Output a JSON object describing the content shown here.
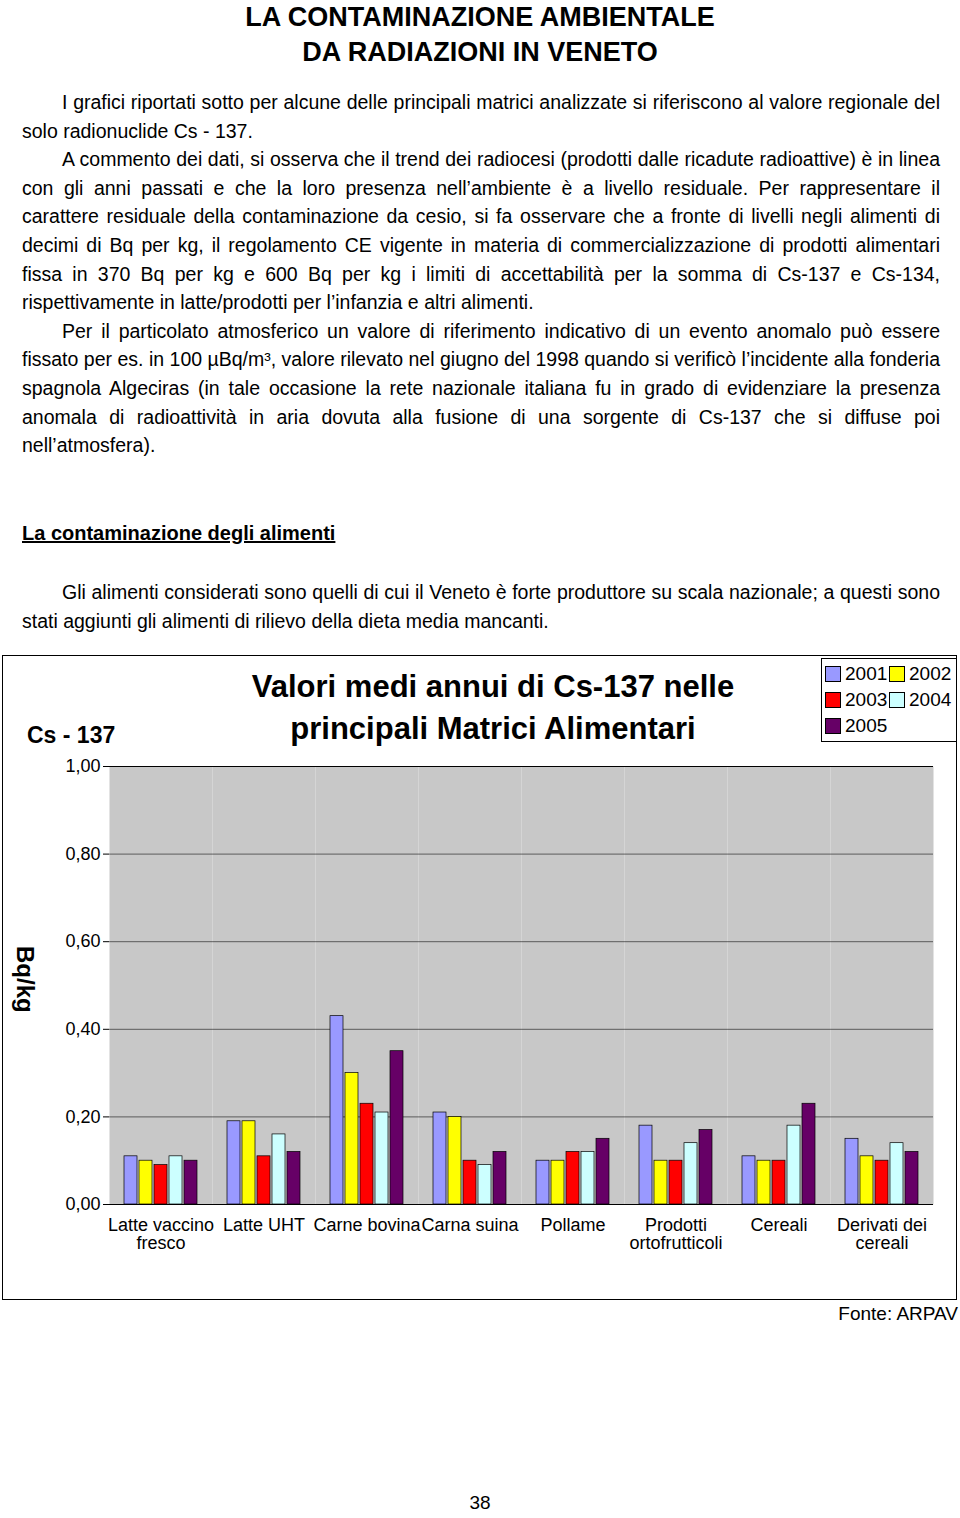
{
  "header": {
    "title": [
      "LA CONTAMINAZIONE AMBIENTALE",
      "DA RADIAZIONI IN VENETO"
    ]
  },
  "intro": {
    "paragraphs": [
      "I grafici riportati sotto per alcune delle principali matrici analizzate si riferiscono al valore regionale del solo radionuclide Cs - 137.",
      "A commento dei dati, si osserva che il trend dei radiocesi (prodotti dalle ricadute radioattive) è in linea con gli anni passati e che la loro presenza nell’ambiente è a livello residuale. Per rappresentare il carattere residuale della contaminazione da cesio, si fa osservare che a fronte di livelli negli alimenti di decimi di Bq per kg, il regolamento CE vigente in materia di commercializzazione di prodotti alimentari fissa in 370 Bq per kg e 600 Bq per kg i limiti di accettabilità per la somma di Cs-137 e Cs-134, rispettivamente in latte/prodotti per l’infanzia e altri alimenti.",
      "Per il particolato atmosferico un valore di riferimento indicativo di un evento anomalo può essere fissato per es. in 100 µBq/m³, valore rilevato nel giugno del 1998 quando si verificò l’incidente alla fonderia spagnola Algeciras (in tale occasione la rete nazionale italiana fu in grado di evidenziare la presenza anomala di radioattività in aria dovuta alla fusione di una sorgente di Cs-137 che si diffuse poi nell’atmosfera)."
    ]
  },
  "section": {
    "heading": "La contaminazione degli alimenti",
    "paragraphs": [
      "Gli alimenti considerati sono quelli di cui il Veneto è forte produttore su scala nazionale; a questi sono stati aggiunti gli alimenti di rilievo della dieta media mancanti."
    ]
  },
  "chart_data": {
    "type": "bar",
    "title": "Valori medi annui di Cs-137 nelle principali Matrici Alimentari",
    "annotation": "Cs - 137",
    "y_label": "Bq/kg",
    "categories": [
      "Latte vaccino fresco",
      "Latte UHT",
      "Carne bovina",
      "Carna suina",
      "Pollame",
      "Prodotti ortofrutticoli",
      "Cereali",
      "Derivati dei cereali"
    ],
    "series": [
      {
        "name": "2001",
        "color": "#9999ff",
        "values": [
          0.11,
          0.19,
          0.43,
          0.21,
          0.1,
          0.18,
          0.11,
          0.15
        ]
      },
      {
        "name": "2002",
        "color": "#ffff00",
        "values": [
          0.1,
          0.19,
          0.3,
          0.2,
          0.1,
          0.1,
          0.1,
          0.11
        ]
      },
      {
        "name": "2003",
        "color": "#ff0000",
        "values": [
          0.09,
          0.11,
          0.23,
          0.1,
          0.12,
          0.1,
          0.1,
          0.1
        ]
      },
      {
        "name": "2004",
        "color": "#ccffff",
        "values": [
          0.11,
          0.16,
          0.21,
          0.09,
          0.12,
          0.14,
          0.18,
          0.14
        ]
      },
      {
        "name": "2005",
        "color": "#660066",
        "values": [
          0.1,
          0.12,
          0.35,
          0.12,
          0.15,
          0.17,
          0.23,
          0.12
        ]
      }
    ],
    "ylim": [
      0,
      1
    ],
    "yticks": [
      {
        "value": 0,
        "label": "0,00"
      },
      {
        "value": 0.2,
        "label": "0,20"
      },
      {
        "value": 0.4,
        "label": "0,40"
      },
      {
        "value": 0.6,
        "label": "0,60"
      },
      {
        "value": 0.8,
        "label": "0,80"
      },
      {
        "value": 1,
        "label": "1,00"
      }
    ],
    "grid": true,
    "legend": "top-right"
  },
  "source": "Fonte: ARPAV",
  "page_number": "38"
}
